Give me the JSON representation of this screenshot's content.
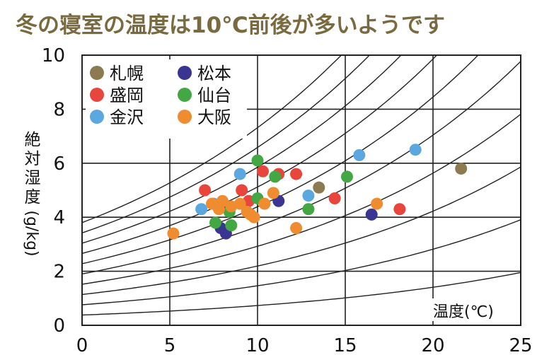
{
  "chart_data": {
    "type": "scatter",
    "title": "冬の寝室の温度は10℃前後が多いようです",
    "title_color": "#7a6a40",
    "xlabel": "温度(℃)",
    "ylabel_main": "絶対湿度",
    "ylabel_unit": "(g/kg)",
    "xlim": [
      0,
      25
    ],
    "ylim": [
      0,
      10
    ],
    "x_ticks": [
      "0",
      "5",
      "10",
      "15",
      "20",
      "25"
    ],
    "y_ticks": [
      "0",
      "2",
      "4",
      "6",
      "8",
      "10"
    ],
    "grid": true,
    "background_curves": "relative humidity isolines (10%–100%), unlabeled",
    "legend_position": "top-left",
    "series": [
      {
        "name": "札幌",
        "color": "#8c7a50",
        "points": [
          [
            13.5,
            5.1
          ],
          [
            21.6,
            5.8
          ]
        ]
      },
      {
        "name": "盛岡",
        "color": "#e8453c",
        "points": [
          [
            7.0,
            5.0
          ],
          [
            9.1,
            5.0
          ],
          [
            9.5,
            4.6
          ],
          [
            10.3,
            5.7
          ],
          [
            11.2,
            5.6
          ],
          [
            12.2,
            5.6
          ],
          [
            14.4,
            4.7
          ],
          [
            18.1,
            4.3
          ]
        ]
      },
      {
        "name": "金沢",
        "color": "#5ba8e0",
        "points": [
          [
            6.8,
            4.3
          ],
          [
            7.5,
            4.5
          ],
          [
            9.0,
            5.6
          ],
          [
            12.9,
            4.8
          ],
          [
            15.8,
            6.3
          ],
          [
            19.0,
            6.5
          ]
        ]
      },
      {
        "name": "松本",
        "color": "#3a3590",
        "points": [
          [
            7.9,
            3.6
          ],
          [
            8.2,
            4.4
          ],
          [
            8.2,
            3.4
          ],
          [
            11.2,
            4.6
          ],
          [
            16.5,
            4.1
          ]
        ]
      },
      {
        "name": "仙台",
        "color": "#43a843",
        "points": [
          [
            7.6,
            3.8
          ],
          [
            8.4,
            4.2
          ],
          [
            8.5,
            3.7
          ],
          [
            10.0,
            6.1
          ],
          [
            10.0,
            4.7
          ],
          [
            11.0,
            5.5
          ],
          [
            12.9,
            4.3
          ],
          [
            15.1,
            5.5
          ]
        ]
      },
      {
        "name": "大阪",
        "color": "#f08c30",
        "points": [
          [
            5.2,
            3.4
          ],
          [
            7.4,
            4.5
          ],
          [
            7.8,
            4.3
          ],
          [
            8.0,
            4.6
          ],
          [
            8.5,
            4.4
          ],
          [
            9.0,
            4.5
          ],
          [
            9.4,
            4.2
          ],
          [
            9.6,
            4.1
          ],
          [
            9.8,
            4.0
          ],
          [
            10.4,
            4.5
          ],
          [
            10.9,
            4.9
          ],
          [
            12.2,
            3.6
          ],
          [
            16.8,
            4.5
          ]
        ]
      }
    ]
  }
}
